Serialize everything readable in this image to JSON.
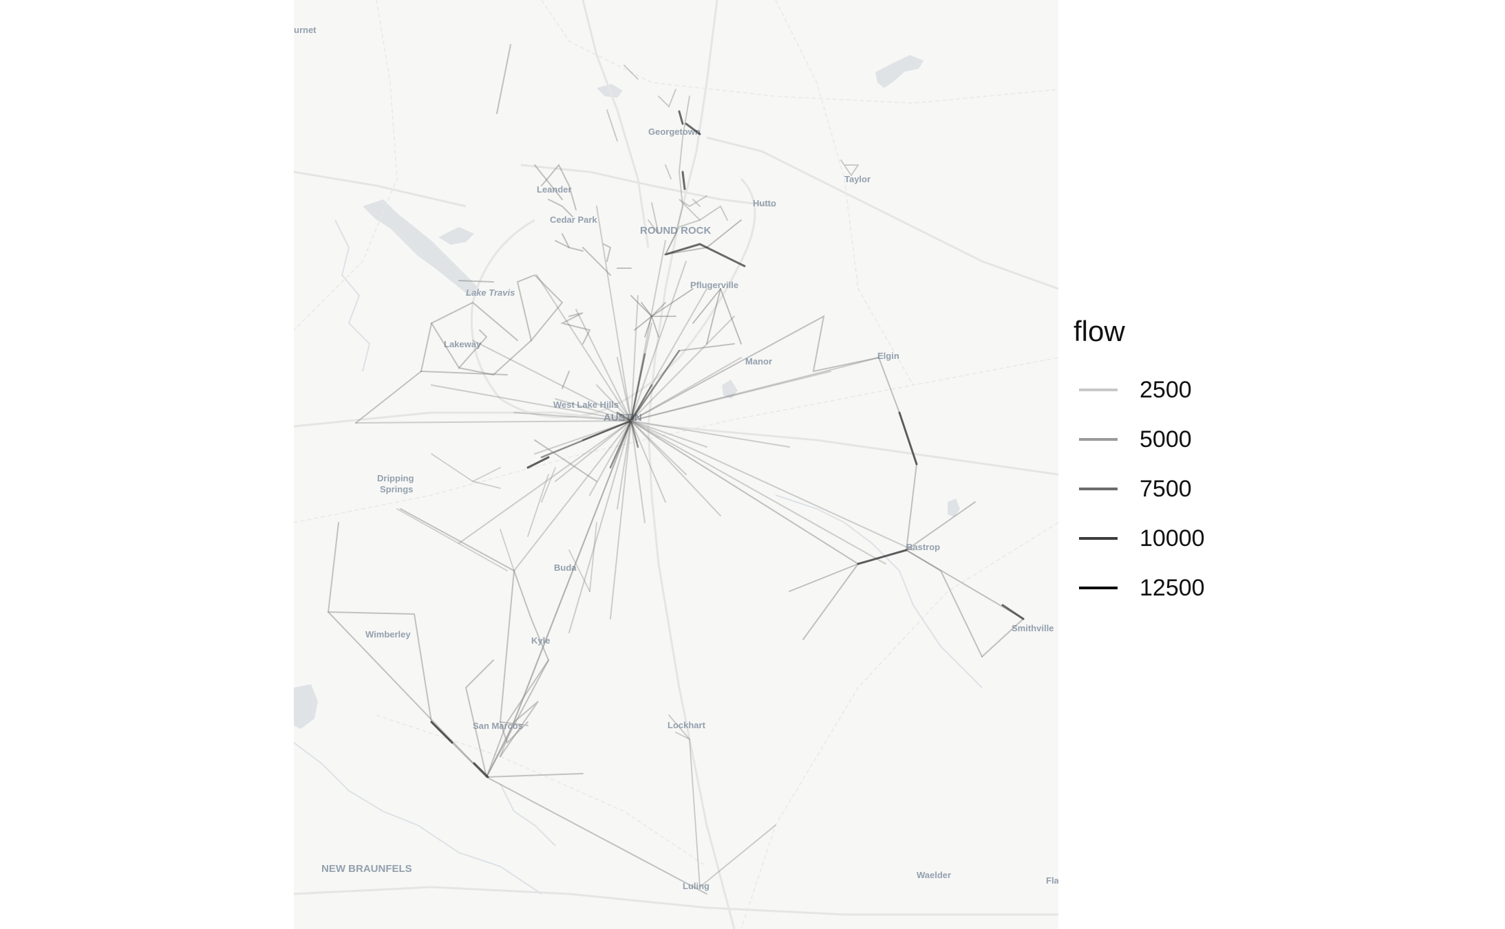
{
  "map": {
    "place_labels": [
      {
        "id": "burnet",
        "text": "urnet"
      },
      {
        "id": "georgetown",
        "text": "Georgetown"
      },
      {
        "id": "taylor",
        "text": "Taylor"
      },
      {
        "id": "leander",
        "text": "Leander"
      },
      {
        "id": "hutto",
        "text": "Hutto"
      },
      {
        "id": "cedar-park",
        "text": "Cedar Park"
      },
      {
        "id": "round-rock",
        "text": "ROUND ROCK"
      },
      {
        "id": "pflugerville",
        "text": "Pflugerville"
      },
      {
        "id": "lake-travis",
        "text": "Lake Travis"
      },
      {
        "id": "lakeway",
        "text": "Lakeway"
      },
      {
        "id": "manor",
        "text": "Manor"
      },
      {
        "id": "elgin",
        "text": "Elgin"
      },
      {
        "id": "west-lake-hills",
        "text": "West Lake Hills"
      },
      {
        "id": "austin",
        "text": "AUSTIN"
      },
      {
        "id": "dripping-springs-1",
        "text": "Dripping"
      },
      {
        "id": "dripping-springs-2",
        "text": "Springs"
      },
      {
        "id": "bastrop",
        "text": "Bastrop"
      },
      {
        "id": "buda",
        "text": "Buda"
      },
      {
        "id": "wimberley",
        "text": "Wimberley"
      },
      {
        "id": "kyle",
        "text": "Kyle"
      },
      {
        "id": "smithville",
        "text": "Smithville"
      },
      {
        "id": "lockhart",
        "text": "Lockhart"
      },
      {
        "id": "san-marcos",
        "text": "San Marcos"
      },
      {
        "id": "new-braunfels",
        "text": "NEW BRAUNFELS"
      },
      {
        "id": "waelder",
        "text": "Waelder"
      },
      {
        "id": "luling",
        "text": "Luling"
      },
      {
        "id": "flatonia",
        "text": "Fla"
      }
    ],
    "colors": {
      "background": "#f7f7f6",
      "road": "#e6e6e6",
      "water": "#dfe3e6",
      "label": "#93a0ad"
    }
  },
  "legend": {
    "title": "flow",
    "entries": [
      {
        "value": "2500",
        "color": "#c8c8c8"
      },
      {
        "value": "5000",
        "color": "#9a9a9a"
      },
      {
        "value": "7500",
        "color": "#6b6b6b"
      },
      {
        "value": "10000",
        "color": "#3d3d3d"
      },
      {
        "value": "12500",
        "color": "#0a0a0a"
      }
    ]
  }
}
